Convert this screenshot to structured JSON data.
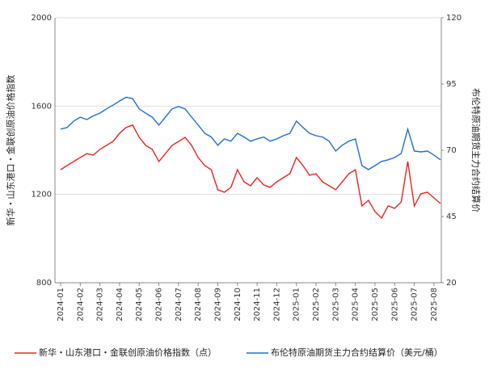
{
  "chart_data": {
    "type": "line",
    "ylabel": "新华・山东港口・金联创原油价格指数",
    "y2label": "布伦特原油期货主力合约结算价",
    "categories": [
      "2024-01",
      null,
      null,
      "2024-02",
      null,
      null,
      "2024-03",
      null,
      null,
      "2024-04",
      null,
      null,
      "2024-05",
      null,
      null,
      "2024-06",
      null,
      null,
      "2024-07",
      null,
      null,
      "2024-08",
      null,
      null,
      "2024-09",
      null,
      null,
      "2024-10",
      null,
      null,
      "2024-11",
      null,
      null,
      "2024-12",
      null,
      null,
      "2025-01",
      null,
      null,
      "2025-02",
      null,
      null,
      "2025-03",
      null,
      null,
      "2025-04",
      null,
      null,
      "2025-05",
      null,
      null,
      "2025-06",
      null,
      null,
      "2025-07",
      null,
      null,
      "2025-08",
      null
    ],
    "series": [
      {
        "name": "新华・山东港口・金联创原油价格指数（点）",
        "color": "#e8261d",
        "values": [
          1312,
          1331,
          1349,
          1367,
          1385,
          1378,
          1404,
          1422,
          1440,
          1477,
          1503,
          1514,
          1459,
          1422,
          1404,
          1349,
          1385,
          1422,
          1440,
          1459,
          1422,
          1367,
          1331,
          1312,
          1221,
          1210,
          1232,
          1312,
          1257,
          1239,
          1276,
          1243,
          1232,
          1257,
          1276,
          1294,
          1367,
          1331,
          1287,
          1294,
          1257,
          1239,
          1221,
          1257,
          1294,
          1312,
          1148,
          1173,
          1122,
          1093,
          1148,
          1137,
          1166,
          1349,
          1148,
          1203,
          1210,
          1184,
          1159
        ]
      },
      {
        "name": "布伦特原油期货主力合约结算价（美元/桶）",
        "color": "#1f6fd1",
        "axis": "y2",
        "values": [
          78,
          78.6,
          81,
          82.5,
          81.6,
          83,
          84,
          85.6,
          87,
          88.6,
          90,
          89.5,
          85.6,
          84,
          82.5,
          79.5,
          82.5,
          85.6,
          86.5,
          85.6,
          82.5,
          79.5,
          76.4,
          75,
          71.9,
          74.3,
          73.4,
          76.4,
          75,
          73.4,
          74.3,
          75,
          73.4,
          74.3,
          75.5,
          76.4,
          81,
          78.6,
          76.4,
          75.5,
          75,
          73.4,
          69.7,
          71.9,
          73.4,
          74.3,
          64.2,
          62.7,
          64.2,
          65.8,
          66.4,
          67.3,
          68.8,
          78,
          69.7,
          69.4,
          69.7,
          68.2,
          66.4
        ]
      }
    ],
    "ylim": [
      800,
      2000
    ],
    "yticks": [
      800,
      1200,
      1600,
      2000
    ],
    "y2lim": [
      20,
      120
    ],
    "y2ticks": [
      20,
      45,
      70,
      95,
      120
    ],
    "grid": true
  }
}
